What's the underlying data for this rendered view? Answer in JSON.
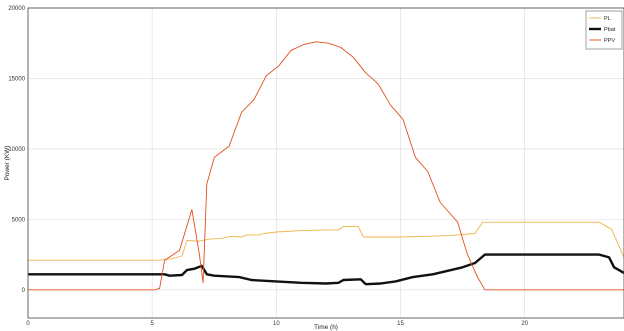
{
  "chart_data": {
    "type": "line",
    "title": "",
    "xlabel": "Time (h)",
    "ylabel": "Power (KW)",
    "xlim": [
      0,
      24
    ],
    "ylim": [
      -2000,
      20000
    ],
    "xticks": [
      0,
      5,
      10,
      15,
      20
    ],
    "yticks": [
      0,
      5000,
      10000,
      15000,
      20000
    ],
    "grid": true,
    "legend_position": "top-right",
    "series": [
      {
        "name": "PL",
        "color": "#f0b24a",
        "points": [
          [
            0,
            2100
          ],
          [
            5.3,
            2100
          ],
          [
            5.8,
            2200
          ],
          [
            6.2,
            2400
          ],
          [
            6.4,
            3500
          ],
          [
            6.9,
            3450
          ],
          [
            7.3,
            3600
          ],
          [
            7.8,
            3650
          ],
          [
            8.2,
            3800
          ],
          [
            8.6,
            3750
          ],
          [
            8.8,
            3900
          ],
          [
            9.3,
            3900
          ],
          [
            9.5,
            4000
          ],
          [
            10,
            4100
          ],
          [
            11,
            4200
          ],
          [
            12,
            4250
          ],
          [
            12.5,
            4250
          ],
          [
            12.7,
            4500
          ],
          [
            13.3,
            4500
          ],
          [
            13.5,
            3750
          ],
          [
            15,
            3750
          ],
          [
            16,
            3800
          ],
          [
            17,
            3850
          ],
          [
            18,
            4000
          ],
          [
            18.3,
            4800
          ],
          [
            23,
            4800
          ],
          [
            23.5,
            4300
          ],
          [
            24,
            2300
          ]
        ]
      },
      {
        "name": "Pbat",
        "color": "#111111",
        "points": [
          [
            0,
            1100
          ],
          [
            5.5,
            1100
          ],
          [
            5.7,
            1000
          ],
          [
            6.2,
            1050
          ],
          [
            6.4,
            1400
          ],
          [
            6.7,
            1500
          ],
          [
            7,
            1700
          ],
          [
            7.2,
            1100
          ],
          [
            7.5,
            1000
          ],
          [
            8.5,
            900
          ],
          [
            9,
            700
          ],
          [
            10,
            600
          ],
          [
            11,
            500
          ],
          [
            12,
            450
          ],
          [
            12.5,
            500
          ],
          [
            12.7,
            700
          ],
          [
            13.4,
            750
          ],
          [
            13.6,
            400
          ],
          [
            14.2,
            450
          ],
          [
            14.8,
            600
          ],
          [
            15.5,
            900
          ],
          [
            16.3,
            1100
          ],
          [
            17.5,
            1600
          ],
          [
            18,
            1900
          ],
          [
            18.4,
            2500
          ],
          [
            23,
            2500
          ],
          [
            23.4,
            2300
          ],
          [
            23.6,
            1600
          ],
          [
            24,
            1200
          ]
        ]
      },
      {
        "name": "PPV",
        "color": "#e0501f",
        "points": [
          [
            0,
            0
          ],
          [
            5.1,
            0
          ],
          [
            5.3,
            100
          ],
          [
            5.5,
            2100
          ],
          [
            6.1,
            2800
          ],
          [
            6.6,
            5700
          ],
          [
            6.9,
            2500
          ],
          [
            7.05,
            500
          ],
          [
            7.2,
            7500
          ],
          [
            7.5,
            9400
          ],
          [
            8.1,
            10200
          ],
          [
            8.6,
            12600
          ],
          [
            9.1,
            13500
          ],
          [
            9.6,
            15200
          ],
          [
            10.1,
            15900
          ],
          [
            10.6,
            17000
          ],
          [
            11.1,
            17400
          ],
          [
            11.6,
            17600
          ],
          [
            12.1,
            17500
          ],
          [
            12.6,
            17200
          ],
          [
            13.1,
            16500
          ],
          [
            13.6,
            15400
          ],
          [
            14.1,
            14600
          ],
          [
            14.6,
            13100
          ],
          [
            15.1,
            12100
          ],
          [
            15.6,
            9400
          ],
          [
            16.1,
            8400
          ],
          [
            16.6,
            6200
          ],
          [
            17.1,
            5200
          ],
          [
            17.3,
            4800
          ],
          [
            17.7,
            2500
          ],
          [
            18.1,
            900
          ],
          [
            18.4,
            0
          ],
          [
            24,
            0
          ]
        ]
      }
    ]
  }
}
